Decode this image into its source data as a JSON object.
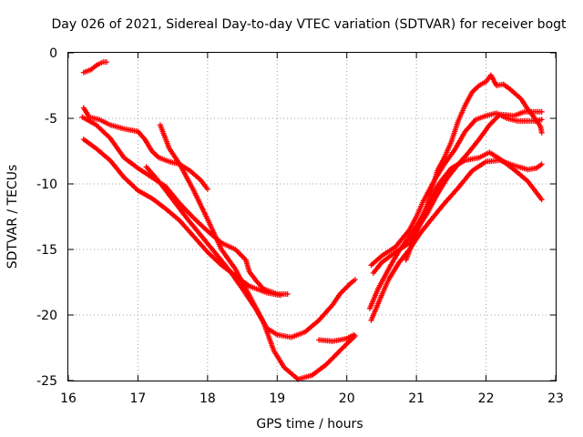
{
  "chart_data": {
    "type": "scatter",
    "title": "Day 026 of 2021, Sidereal Day-to-day VTEC variation (SDTVAR) for receiver bogt",
    "xlabel": "GPS time / hours",
    "ylabel": "SDTVAR / TECUs",
    "xlim": [
      16,
      23
    ],
    "ylim": [
      -25,
      0
    ],
    "xticks": [
      16,
      17,
      18,
      19,
      20,
      21,
      22,
      23
    ],
    "yticks": [
      0,
      -5,
      -10,
      -15,
      -20,
      -25
    ],
    "xtick_labels": [
      "16",
      "17",
      "18",
      "19",
      "20",
      "21",
      "22",
      "23"
    ],
    "ytick_labels": [
      "0",
      "-5",
      "-10",
      "-15",
      "-20",
      "-25"
    ],
    "grid": true,
    "marker": "plus",
    "color": "#ff0000",
    "series": [
      {
        "name": "track-1",
        "points": [
          [
            16.22,
            -1.5
          ],
          [
            16.32,
            -1.3
          ],
          [
            16.42,
            -0.9
          ],
          [
            16.5,
            -0.7
          ],
          [
            16.55,
            -0.7
          ]
        ]
      },
      {
        "name": "track-2",
        "points": [
          [
            16.22,
            -4.2
          ],
          [
            16.3,
            -4.9
          ],
          [
            16.45,
            -5.1
          ],
          [
            16.6,
            -5.5
          ],
          [
            16.8,
            -5.8
          ],
          [
            17.0,
            -6.0
          ],
          [
            17.1,
            -6.6
          ],
          [
            17.2,
            -7.5
          ],
          [
            17.3,
            -8.0
          ],
          [
            17.45,
            -8.3
          ],
          [
            17.6,
            -8.5
          ],
          [
            17.75,
            -9.0
          ],
          [
            17.9,
            -9.7
          ],
          [
            18.0,
            -10.4
          ]
        ]
      },
      {
        "name": "track-3",
        "points": [
          [
            16.2,
            -4.9
          ],
          [
            16.4,
            -5.5
          ],
          [
            16.6,
            -6.5
          ],
          [
            16.8,
            -8.0
          ],
          [
            17.0,
            -8.8
          ],
          [
            17.2,
            -9.5
          ],
          [
            17.4,
            -10.2
          ],
          [
            17.6,
            -11.5
          ],
          [
            17.8,
            -12.6
          ],
          [
            18.0,
            -13.6
          ],
          [
            18.2,
            -14.5
          ],
          [
            18.4,
            -15.0
          ],
          [
            18.55,
            -15.8
          ],
          [
            18.6,
            -16.7
          ],
          [
            18.7,
            -17.4
          ],
          [
            18.8,
            -18.0
          ],
          [
            19.0,
            -18.4
          ],
          [
            19.15,
            -18.4
          ]
        ]
      },
      {
        "name": "track-4",
        "points": [
          [
            16.22,
            -6.6
          ],
          [
            16.4,
            -7.3
          ],
          [
            16.6,
            -8.2
          ],
          [
            16.8,
            -9.5
          ],
          [
            17.0,
            -10.5
          ],
          [
            17.2,
            -11.1
          ],
          [
            17.4,
            -11.9
          ],
          [
            17.6,
            -12.8
          ],
          [
            17.8,
            -14.0
          ],
          [
            18.0,
            -15.2
          ],
          [
            18.2,
            -16.2
          ],
          [
            18.4,
            -17.0
          ],
          [
            18.6,
            -17.8
          ],
          [
            18.75,
            -18.1
          ],
          [
            18.85,
            -18.3
          ],
          [
            19.05,
            -18.5
          ]
        ]
      },
      {
        "name": "track-5",
        "points": [
          [
            17.12,
            -8.7
          ],
          [
            17.3,
            -9.8
          ],
          [
            17.5,
            -11.2
          ],
          [
            17.7,
            -12.6
          ],
          [
            17.9,
            -13.9
          ],
          [
            18.1,
            -15.2
          ],
          [
            18.3,
            -16.5
          ],
          [
            18.5,
            -18.0
          ],
          [
            18.7,
            -19.6
          ],
          [
            18.85,
            -21.0
          ],
          [
            19.0,
            -21.5
          ],
          [
            19.2,
            -21.7
          ],
          [
            19.4,
            -21.3
          ],
          [
            19.6,
            -20.4
          ],
          [
            19.8,
            -19.2
          ],
          [
            19.9,
            -18.4
          ],
          [
            20.05,
            -17.6
          ],
          [
            20.12,
            -17.3
          ]
        ]
      },
      {
        "name": "track-6",
        "points": [
          [
            17.32,
            -5.5
          ],
          [
            17.45,
            -7.3
          ],
          [
            17.6,
            -8.5
          ],
          [
            17.8,
            -10.5
          ],
          [
            18.0,
            -12.7
          ],
          [
            18.2,
            -15.0
          ],
          [
            18.4,
            -16.5
          ],
          [
            18.6,
            -18.5
          ],
          [
            18.8,
            -20.5
          ],
          [
            18.95,
            -22.7
          ],
          [
            19.1,
            -24.0
          ],
          [
            19.3,
            -24.9
          ],
          [
            19.5,
            -24.6
          ],
          [
            19.7,
            -23.8
          ],
          [
            19.85,
            -23.0
          ],
          [
            20.0,
            -22.2
          ],
          [
            20.12,
            -21.6
          ]
        ]
      },
      {
        "name": "track-7",
        "points": [
          [
            19.6,
            -21.9
          ],
          [
            19.8,
            -22.0
          ],
          [
            20.0,
            -21.8
          ],
          [
            20.1,
            -21.5
          ]
        ]
      },
      {
        "name": "track-8",
        "points": [
          [
            20.35,
            -20.4
          ],
          [
            20.5,
            -18.5
          ],
          [
            20.6,
            -17.3
          ],
          [
            20.75,
            -16.0
          ],
          [
            20.9,
            -15.0
          ],
          [
            21.05,
            -13.8
          ],
          [
            21.2,
            -12.8
          ],
          [
            21.4,
            -11.5
          ],
          [
            21.6,
            -10.3
          ],
          [
            21.8,
            -9.0
          ],
          [
            22.0,
            -8.3
          ],
          [
            22.2,
            -8.2
          ],
          [
            22.4,
            -8.6
          ],
          [
            22.6,
            -8.9
          ],
          [
            22.72,
            -8.8
          ],
          [
            22.8,
            -8.5
          ]
        ]
      },
      {
        "name": "track-9",
        "points": [
          [
            20.33,
            -19.5
          ],
          [
            20.45,
            -18.0
          ],
          [
            20.6,
            -16.5
          ],
          [
            20.75,
            -15.1
          ],
          [
            20.9,
            -14.0
          ],
          [
            21.05,
            -12.8
          ],
          [
            21.2,
            -11.2
          ],
          [
            21.35,
            -9.8
          ],
          [
            21.5,
            -8.8
          ],
          [
            21.7,
            -8.2
          ],
          [
            21.9,
            -8.0
          ],
          [
            22.05,
            -7.6
          ],
          [
            22.2,
            -8.1
          ],
          [
            22.4,
            -8.9
          ],
          [
            22.6,
            -9.8
          ],
          [
            22.7,
            -10.5
          ],
          [
            22.8,
            -11.2
          ]
        ]
      },
      {
        "name": "track-10",
        "points": [
          [
            20.35,
            -16.2
          ],
          [
            20.5,
            -15.5
          ],
          [
            20.7,
            -14.8
          ],
          [
            20.9,
            -13.5
          ],
          [
            21.0,
            -12.5
          ],
          [
            21.1,
            -11.3
          ],
          [
            21.25,
            -9.8
          ],
          [
            21.4,
            -8.5
          ],
          [
            21.55,
            -7.4
          ],
          [
            21.7,
            -6.0
          ],
          [
            21.85,
            -5.1
          ],
          [
            22.0,
            -4.8
          ],
          [
            22.15,
            -4.6
          ],
          [
            22.3,
            -5.0
          ],
          [
            22.45,
            -5.2
          ],
          [
            22.6,
            -5.2
          ],
          [
            22.7,
            -5.2
          ],
          [
            22.8,
            -5.1
          ]
        ]
      },
      {
        "name": "track-11",
        "points": [
          [
            20.38,
            -16.8
          ],
          [
            20.5,
            -16.0
          ],
          [
            20.7,
            -15.2
          ],
          [
            20.9,
            -14.5
          ],
          [
            21.0,
            -13.5
          ],
          [
            21.15,
            -12.3
          ],
          [
            21.3,
            -10.8
          ],
          [
            21.45,
            -9.5
          ],
          [
            21.6,
            -8.5
          ],
          [
            21.75,
            -7.6
          ],
          [
            21.9,
            -6.6
          ],
          [
            22.05,
            -5.5
          ],
          [
            22.2,
            -4.7
          ],
          [
            22.4,
            -4.8
          ],
          [
            22.55,
            -4.5
          ],
          [
            22.7,
            -4.5
          ],
          [
            22.8,
            -4.5
          ]
        ]
      },
      {
        "name": "track-12",
        "points": [
          [
            20.85,
            -15.8
          ],
          [
            21.0,
            -13.8
          ],
          [
            21.15,
            -11.8
          ],
          [
            21.3,
            -9.0
          ],
          [
            21.4,
            -8.0
          ],
          [
            21.5,
            -6.8
          ],
          [
            21.6,
            -5.2
          ],
          [
            21.7,
            -4.0
          ],
          [
            21.8,
            -3.0
          ],
          [
            21.9,
            -2.5
          ],
          [
            22.0,
            -2.2
          ],
          [
            22.07,
            -1.7
          ],
          [
            22.15,
            -2.5
          ],
          [
            22.25,
            -2.4
          ],
          [
            22.35,
            -2.8
          ],
          [
            22.5,
            -3.5
          ],
          [
            22.6,
            -4.3
          ],
          [
            22.7,
            -5.0
          ],
          [
            22.78,
            -5.6
          ],
          [
            22.8,
            -6.1
          ]
        ]
      }
    ]
  }
}
